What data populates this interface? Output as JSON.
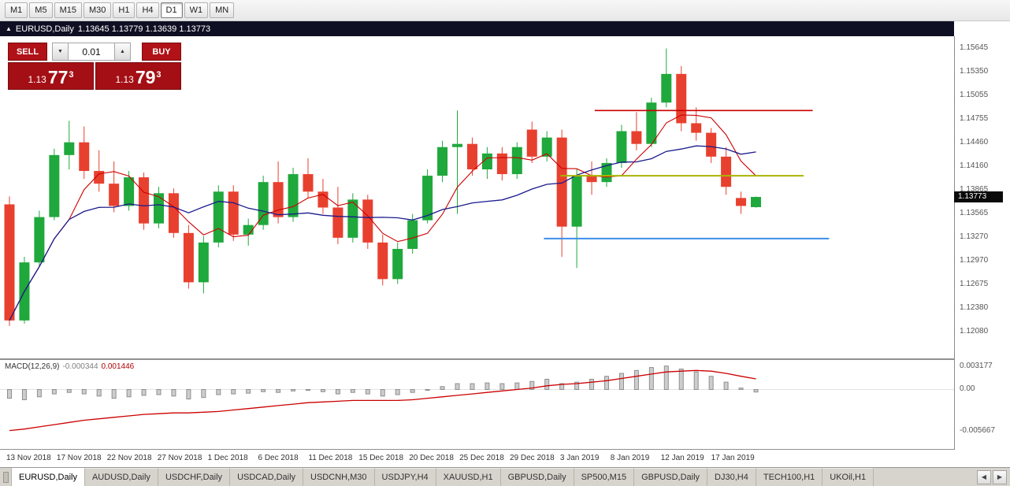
{
  "toolbar": {
    "timeframes": [
      "M1",
      "M5",
      "M15",
      "M30",
      "H1",
      "H4",
      "D1",
      "W1",
      "MN"
    ],
    "active": "D1"
  },
  "title_bar": {
    "icon": "▲",
    "symbol": "EURUSD,Daily",
    "ohlc": "1.13645 1.13779 1.13639 1.13773"
  },
  "trade_panel": {
    "sell_label": "SELL",
    "buy_label": "BUY",
    "lot": "0.01",
    "lot_down_icon": "▼",
    "lot_up_icon": "▲",
    "bid": {
      "prefix": "1.13",
      "big": "77",
      "pip": "3"
    },
    "ask": {
      "prefix": "1.13",
      "big": "79",
      "pip": "3"
    }
  },
  "macd": {
    "name": "MACD(12,26,9)",
    "value": "-0.000344",
    "signal": "0.001446"
  },
  "tab_bar": {
    "active_index": 0,
    "scroll_left": "◀",
    "scroll_right": "▶",
    "tabs": [
      "EURUSD,Daily",
      "AUDUSD,Daily",
      "USDCHF,Daily",
      "USDCAD,Daily",
      "USDCNH,M30",
      "USDJPY,H4",
      "XAUUSD,H1",
      "GBPUSD,Daily",
      "SP500,M15",
      "GBPUSD,Daily",
      "DJ30,H4",
      "TECH100,H1",
      "UKOil,H1"
    ]
  },
  "chart_data": {
    "type": "candlestick",
    "symbol": "EURUSD",
    "timeframe": "Daily",
    "price_axis": {
      "max": 1.15794,
      "min": 1.11743,
      "ticks": [
        "1.15645",
        "1.15350",
        "1.15055",
        "1.14755",
        "1.14460",
        "1.14160",
        "1.13865",
        "1.13565",
        "1.13270",
        "1.12970",
        "1.12675",
        "1.12380",
        "1.12080"
      ],
      "current": 1.13773,
      "current_label": "1.13773"
    },
    "date_axis": [
      "13 Nov 2018",
      "17 Nov 2018",
      "22 Nov 2018",
      "27 Nov 2018",
      "1 Dec 2018",
      "6 Dec 2018",
      "11 Dec 2018",
      "15 Dec 2018",
      "20 Dec 2018",
      "25 Dec 2018",
      "29 Dec 2018",
      "3 Jan 2019",
      "8 Jan 2019",
      "12 Jan 2019",
      "17 Jan 2019"
    ],
    "candles": [
      [
        1.1368,
        1.1378,
        1.1215,
        1.1222
      ],
      [
        1.1222,
        1.1302,
        1.1218,
        1.1295
      ],
      [
        1.1295,
        1.136,
        1.129,
        1.1352
      ],
      [
        1.1352,
        1.1438,
        1.1348,
        1.143
      ],
      [
        1.143,
        1.1473,
        1.1412,
        1.1446
      ],
      [
        1.1446,
        1.1466,
        1.14,
        1.141
      ],
      [
        1.141,
        1.1436,
        1.1384,
        1.1394
      ],
      [
        1.1394,
        1.1422,
        1.1358,
        1.1366
      ],
      [
        1.1366,
        1.141,
        1.136,
        1.1402
      ],
      [
        1.1402,
        1.1408,
        1.1336,
        1.1344
      ],
      [
        1.1344,
        1.139,
        1.1338,
        1.1382
      ],
      [
        1.1382,
        1.1388,
        1.1326,
        1.1332
      ],
      [
        1.1332,
        1.1342,
        1.1262,
        1.127
      ],
      [
        1.127,
        1.1328,
        1.1256,
        1.132
      ],
      [
        1.132,
        1.1392,
        1.1314,
        1.1384
      ],
      [
        1.1384,
        1.1392,
        1.1322,
        1.133
      ],
      [
        1.133,
        1.135,
        1.1316,
        1.1342
      ],
      [
        1.1342,
        1.1404,
        1.1336,
        1.1396
      ],
      [
        1.1396,
        1.1422,
        1.1344,
        1.1352
      ],
      [
        1.1352,
        1.1414,
        1.1346,
        1.1406
      ],
      [
        1.1406,
        1.1426,
        1.1376,
        1.1384
      ],
      [
        1.1384,
        1.14,
        1.1356,
        1.1364
      ],
      [
        1.1364,
        1.139,
        1.1318,
        1.1326
      ],
      [
        1.1326,
        1.1382,
        1.132,
        1.1374
      ],
      [
        1.1374,
        1.138,
        1.1312,
        1.132
      ],
      [
        1.132,
        1.133,
        1.1266,
        1.1274
      ],
      [
        1.1274,
        1.132,
        1.1268,
        1.1312
      ],
      [
        1.1312,
        1.1356,
        1.1306,
        1.1348
      ],
      [
        1.1348,
        1.1412,
        1.1344,
        1.1404
      ],
      [
        1.1404,
        1.1448,
        1.1396,
        1.144
      ],
      [
        1.144,
        1.1486,
        1.1356,
        1.1444
      ],
      [
        1.1444,
        1.1452,
        1.1404,
        1.1412
      ],
      [
        1.1412,
        1.144,
        1.14,
        1.1432
      ],
      [
        1.1432,
        1.144,
        1.1398,
        1.1406
      ],
      [
        1.1406,
        1.1446,
        1.14,
        1.144
      ],
      [
        1.1462,
        1.1472,
        1.142,
        1.1428
      ],
      [
        1.1428,
        1.146,
        1.1422,
        1.1452
      ],
      [
        1.1452,
        1.1462,
        1.1302,
        1.134
      ],
      [
        1.134,
        1.1412,
        1.1288,
        1.1404
      ],
      [
        1.1404,
        1.1422,
        1.138,
        1.1396
      ],
      [
        1.1396,
        1.1426,
        1.139,
        1.142
      ],
      [
        1.142,
        1.1468,
        1.1414,
        1.146
      ],
      [
        1.146,
        1.1484,
        1.1436,
        1.1444
      ],
      [
        1.1444,
        1.1502,
        1.144,
        1.1496
      ],
      [
        1.1496,
        1.1564,
        1.149,
        1.1532
      ],
      [
        1.1532,
        1.1542,
        1.146,
        1.147
      ],
      [
        1.147,
        1.149,
        1.1448,
        1.1458
      ],
      [
        1.1458,
        1.1464,
        1.142,
        1.1428
      ],
      [
        1.1428,
        1.144,
        1.138,
        1.139
      ],
      [
        1.1376,
        1.1384,
        1.1356,
        1.1366
      ],
      [
        1.13645,
        1.13779,
        1.13639,
        1.13773
      ]
    ],
    "overlays": {
      "ma_fast_period": 5,
      "ma_slow_period": 13
    },
    "hlines": [
      {
        "name": "hline-red-resistance",
        "price": 1.1486,
        "i1": 39.2,
        "i2": 53.8,
        "color": "#cc0000",
        "width": 1.6
      },
      {
        "name": "hline-olive-level",
        "price": 1.1404,
        "i1": 36.9,
        "i2": 53.2,
        "color": "#a9b400",
        "width": 2
      },
      {
        "name": "hline-blue-support",
        "price": 1.1325,
        "i1": 35.8,
        "i2": 54.9,
        "color": "#3b8eea",
        "width": 2
      }
    ],
    "macd_axis": {
      "max": 0.00403,
      "min": -0.00812,
      "ticks": [
        {
          "label": "0.003177",
          "v": 0.003177
        },
        {
          "label": "0.00",
          "v": 0
        },
        {
          "label": "-0.005667",
          "v": -0.005667
        }
      ]
    },
    "macd_hist": [
      -0.0012,
      -0.0014,
      -0.001,
      -0.0006,
      -0.0004,
      -0.0006,
      -0.0009,
      -0.0012,
      -0.001,
      -0.0008,
      -0.0007,
      -0.0009,
      -0.0013,
      -0.0011,
      -0.0007,
      -0.0006,
      -0.0005,
      -0.0003,
      -0.0004,
      -0.0002,
      -0.0001,
      -0.0003,
      -0.0006,
      -0.0004,
      -0.0006,
      -0.0009,
      -0.0007,
      -0.0004,
      0.0,
      0.0004,
      0.0008,
      0.0008,
      0.0009,
      0.0008,
      0.0009,
      0.0011,
      0.0014,
      0.0008,
      0.001,
      0.0014,
      0.0018,
      0.0022,
      0.0026,
      0.003,
      0.0032,
      0.0028,
      0.0024,
      0.0018,
      0.001,
      0.0002,
      -0.000344
    ],
    "macd_signal": [
      -0.0056,
      -0.0054,
      -0.0051,
      -0.0048,
      -0.0045,
      -0.0042,
      -0.004,
      -0.0038,
      -0.0036,
      -0.0034,
      -0.0033,
      -0.0032,
      -0.0032,
      -0.0031,
      -0.003,
      -0.0028,
      -0.0026,
      -0.0024,
      -0.0022,
      -0.002,
      -0.0018,
      -0.0017,
      -0.0016,
      -0.0015,
      -0.0015,
      -0.0015,
      -0.0015,
      -0.0014,
      -0.0012,
      -0.001,
      -0.0008,
      -0.0006,
      -0.0004,
      -0.0002,
      0.0,
      0.0002,
      0.0005,
      0.0007,
      0.0008,
      0.001,
      0.0012,
      0.0015,
      0.0018,
      0.0021,
      0.0024,
      0.0025,
      0.0026,
      0.0025,
      0.0022,
      0.0018,
      0.001446
    ],
    "colors": {
      "up": "#1fa83c",
      "down": "#e8402f",
      "ma_fast": "#cc0000",
      "ma_slow": "#1a1a8c",
      "hist_fill": "#cdcdcd",
      "hist_stroke": "#8f8f8f",
      "signal": "#cc0000",
      "price_tag_bg": "#0a0a0a"
    }
  }
}
